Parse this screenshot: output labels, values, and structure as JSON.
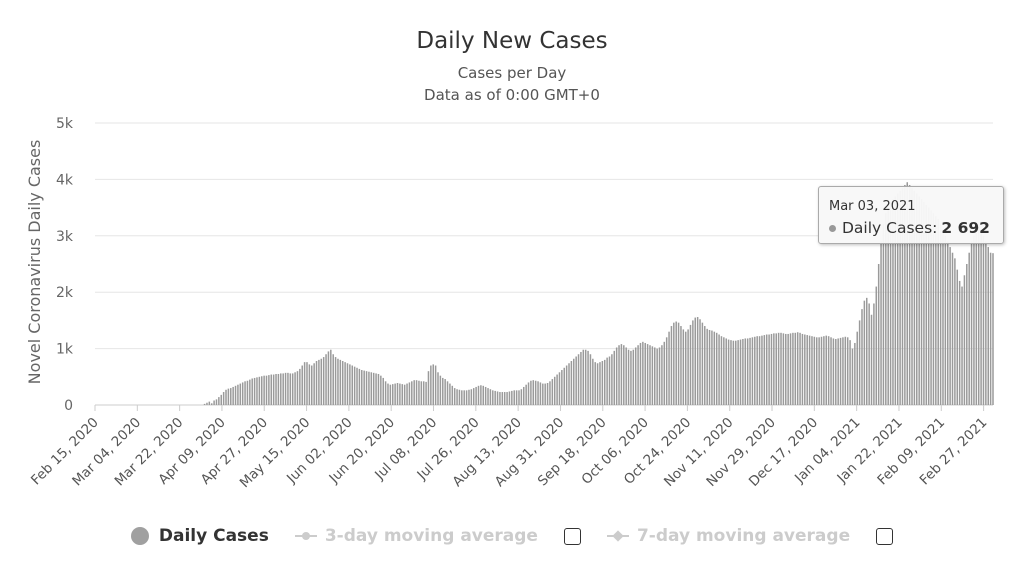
{
  "chart_data": {
    "type": "bar",
    "title": "Daily New Cases",
    "subtitle_1": "Cases per Day",
    "subtitle_2": "Data as of 0:00 GMT+0",
    "ylabel": "Novel Coronavirus Daily Cases",
    "xlabel": "",
    "start_date": "Feb 15, 2020",
    "end_date": "Mar 03, 2021",
    "ylim": [
      0,
      5000
    ],
    "y_ticks": [
      "0",
      "1k",
      "2k",
      "3k",
      "4k",
      "5k"
    ],
    "x_tick_labels": [
      "Feb 15, 2020",
      "Mar 04, 2020",
      "Mar 22, 2020",
      "Apr 09, 2020",
      "Apr 27, 2020",
      "May 15, 2020",
      "Jun 02, 2020",
      "Jun 20, 2020",
      "Jul 08, 2020",
      "Jul 26, 2020",
      "Aug 13, 2020",
      "Aug 31, 2020",
      "Sep 18, 2020",
      "Oct 06, 2020",
      "Oct 24, 2020",
      "Nov 11, 2020",
      "Nov 29, 2020",
      "Dec 17, 2020",
      "Jan 04, 2021",
      "Jan 22, 2021",
      "Feb 09, 2021",
      "Feb 27, 2021"
    ],
    "grid": true,
    "bar_color": "#9a9a9a",
    "series": [
      {
        "name": "Daily Cases",
        "values": [
          0,
          0,
          0,
          0,
          0,
          0,
          0,
          0,
          0,
          0,
          0,
          0,
          0,
          0,
          0,
          0,
          0,
          0,
          0,
          0,
          0,
          0,
          0,
          0,
          0,
          0,
          0,
          0,
          0,
          0,
          0,
          0,
          0,
          0,
          0,
          0,
          0,
          0,
          0,
          0,
          0,
          0,
          0,
          0,
          0,
          0,
          20,
          40,
          60,
          30,
          80,
          100,
          140,
          180,
          230,
          270,
          290,
          300,
          320,
          340,
          360,
          380,
          400,
          420,
          430,
          450,
          470,
          480,
          490,
          500,
          510,
          520,
          520,
          530,
          540,
          540,
          550,
          550,
          560,
          560,
          570,
          570,
          560,
          560,
          580,
          600,
          640,
          700,
          760,
          760,
          720,
          700,
          740,
          780,
          800,
          820,
          850,
          900,
          950,
          980,
          900,
          850,
          820,
          800,
          780,
          760,
          740,
          720,
          700,
          680,
          660,
          640,
          620,
          610,
          600,
          590,
          580,
          570,
          560,
          550,
          520,
          480,
          420,
          380,
          360,
          370,
          380,
          390,
          380,
          370,
          360,
          380,
          400,
          420,
          440,
          440,
          430,
          420,
          420,
          410,
          600,
          700,
          720,
          700,
          580,
          520,
          480,
          460,
          420,
          380,
          340,
          300,
          280,
          270,
          260,
          260,
          260,
          270,
          280,
          300,
          320,
          340,
          350,
          340,
          320,
          300,
          280,
          260,
          250,
          240,
          230,
          230,
          230,
          230,
          240,
          250,
          260,
          260,
          260,
          280,
          320,
          360,
          400,
          430,
          440,
          430,
          420,
          400,
          380,
          380,
          390,
          420,
          460,
          500,
          540,
          580,
          620,
          660,
          700,
          740,
          780,
          820,
          860,
          900,
          940,
          980,
          980,
          960,
          900,
          820,
          760,
          740,
          760,
          780,
          800,
          840,
          860,
          900,
          960,
          1020,
          1060,
          1080,
          1060,
          1020,
          980,
          960,
          980,
          1020,
          1060,
          1100,
          1120,
          1100,
          1080,
          1060,
          1040,
          1020,
          1000,
          1020,
          1060,
          1120,
          1200,
          1300,
          1400,
          1460,
          1480,
          1460,
          1400,
          1340,
          1300,
          1340,
          1420,
          1500,
          1550,
          1560,
          1520,
          1460,
          1400,
          1350,
          1330,
          1320,
          1300,
          1280,
          1250,
          1220,
          1200,
          1180,
          1160,
          1150,
          1140,
          1140,
          1150,
          1160,
          1170,
          1180,
          1180,
          1190,
          1200,
          1210,
          1220,
          1220,
          1230,
          1240,
          1250,
          1250,
          1260,
          1270,
          1270,
          1280,
          1280,
          1270,
          1260,
          1260,
          1270,
          1280,
          1280,
          1290,
          1280,
          1260,
          1250,
          1240,
          1230,
          1220,
          1210,
          1200,
          1200,
          1210,
          1220,
          1230,
          1220,
          1200,
          1180,
          1170,
          1180,
          1190,
          1200,
          1210,
          1200,
          1150,
          1000,
          1100,
          1300,
          1500,
          1700,
          1850,
          1900,
          1800,
          1600,
          1800,
          2100,
          2500,
          2900,
          3200,
          3400,
          3500,
          3600,
          3650,
          3700,
          3750,
          3800,
          3850,
          3900,
          3950,
          3900,
          3850,
          3800,
          3750,
          3700,
          3650,
          3600,
          3550,
          3500,
          3450,
          3400,
          3350,
          3300,
          3200,
          3100,
          3000,
          2900,
          2800,
          2700,
          2600,
          2400,
          2200,
          2100,
          2300,
          2500,
          2700,
          2900,
          3000,
          3100,
          3200,
          3100,
          3000,
          2900,
          2800,
          2700,
          2692
        ]
      }
    ],
    "legend": {
      "items": [
        {
          "label": "Daily Cases",
          "active": true
        },
        {
          "label": "3-day moving average",
          "active": false
        },
        {
          "label": "7-day moving average",
          "active": false
        }
      ]
    },
    "tooltip": {
      "date": "Mar 03, 2021",
      "series_label": "Daily Cases:",
      "value": "2 692"
    }
  }
}
